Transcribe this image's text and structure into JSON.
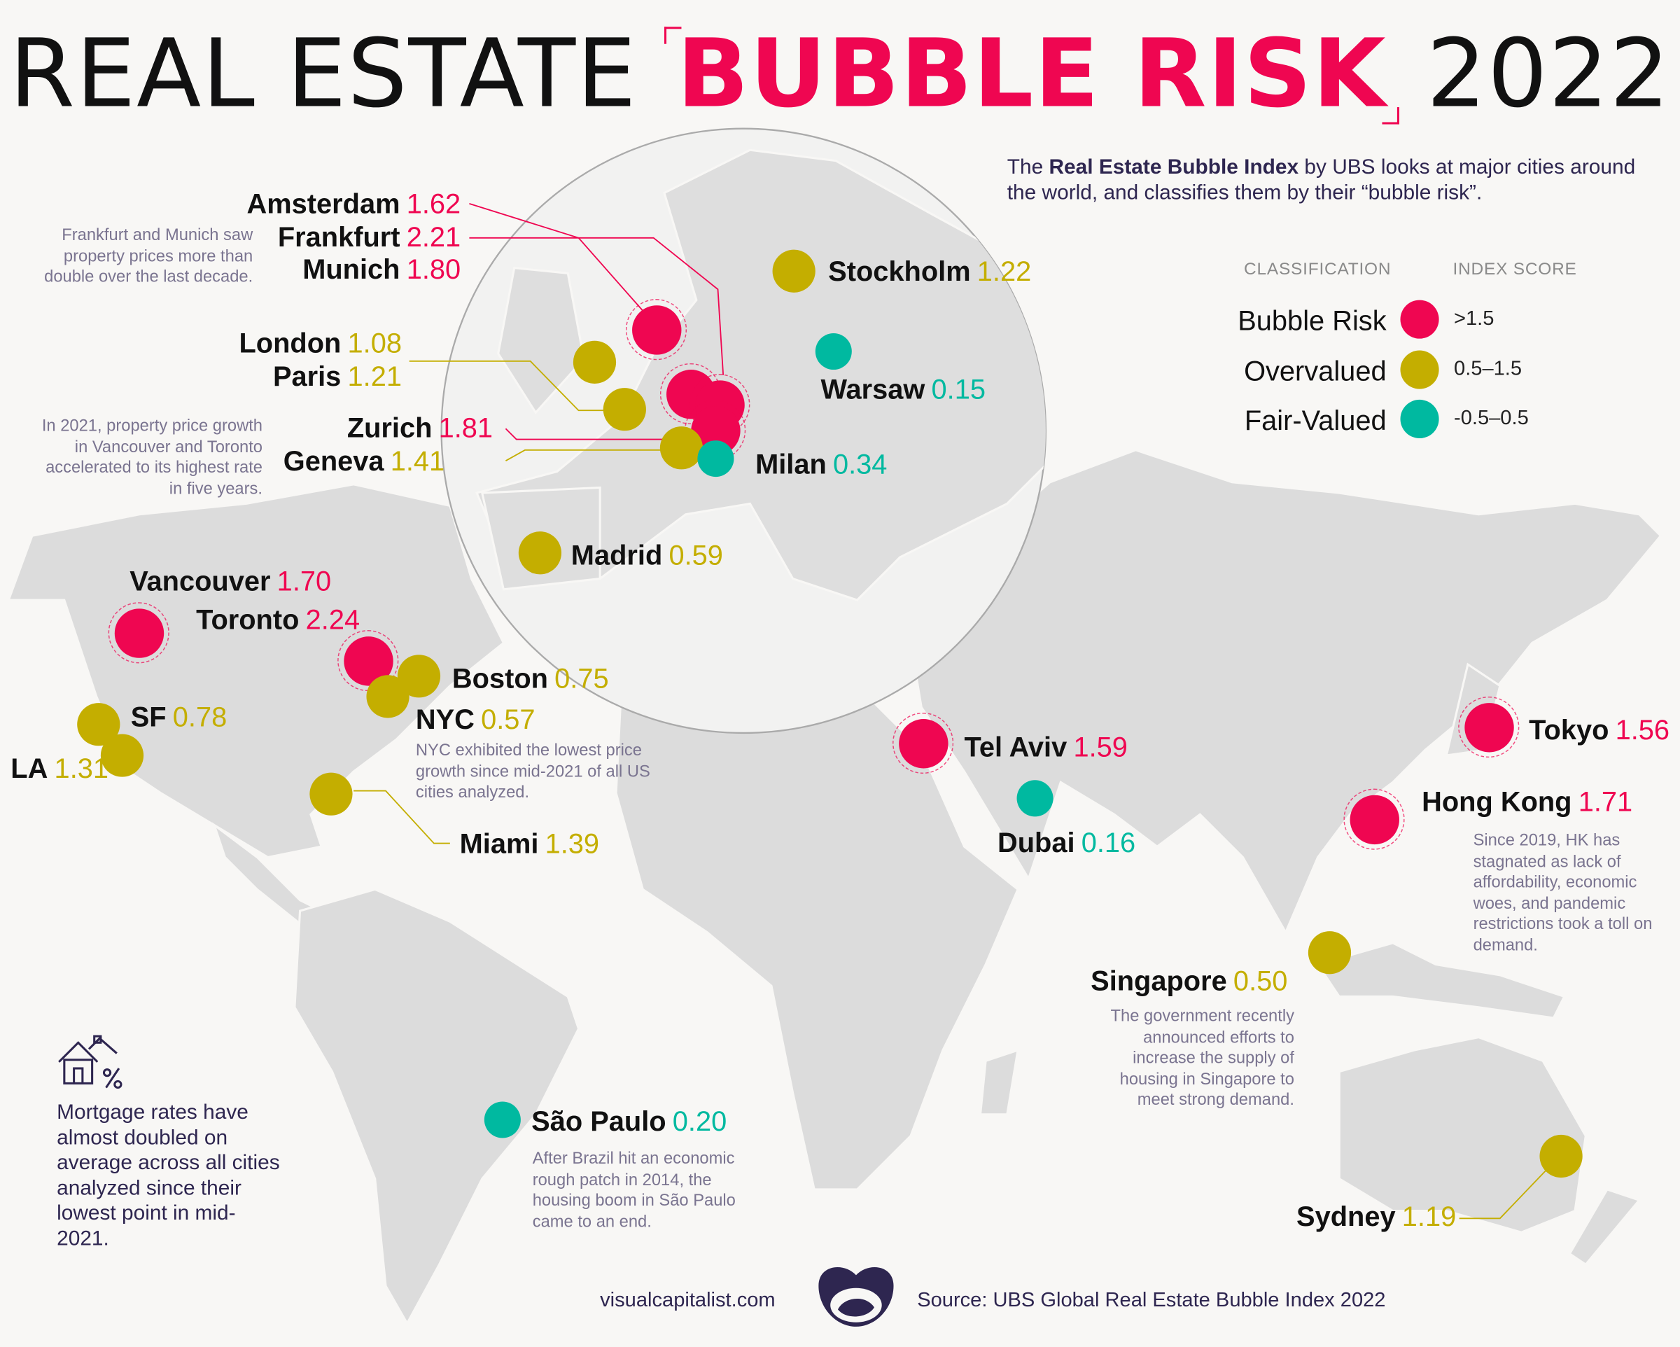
{
  "title": {
    "part1": "REAL ESTATE",
    "highlight": "BUBBLE RISK",
    "year": "2022"
  },
  "intro": {
    "pre": "The ",
    "bold": "Real Estate Bubble Index",
    "post": " by UBS looks at major cities around the world, and classifies them by their “bubble risk”."
  },
  "legend": {
    "col1": "CLASSIFICATION",
    "col2": "INDEX SCORE",
    "items": [
      {
        "label": "Bubble Risk",
        "range": ">1.5",
        "color": "#ef0651"
      },
      {
        "label": "Overvalued",
        "range": "0.5–1.5",
        "color": "#c4ae00"
      },
      {
        "label": "Fair-Valued",
        "range": "-0.5–0.5",
        "color": "#00b9a0"
      }
    ]
  },
  "cities": [
    {
      "name": "Amsterdam",
      "score": "1.62",
      "class": "Bubble Risk"
    },
    {
      "name": "Frankfurt",
      "score": "2.21",
      "class": "Bubble Risk"
    },
    {
      "name": "Munich",
      "score": "1.80",
      "class": "Bubble Risk"
    },
    {
      "name": "London",
      "score": "1.08",
      "class": "Overvalued"
    },
    {
      "name": "Paris",
      "score": "1.21",
      "class": "Overvalued"
    },
    {
      "name": "Zurich",
      "score": "1.81",
      "class": "Bubble Risk"
    },
    {
      "name": "Geneva",
      "score": "1.41",
      "class": "Overvalued"
    },
    {
      "name": "Milan",
      "score": "0.34",
      "class": "Fair-Valued"
    },
    {
      "name": "Stockholm",
      "score": "1.22",
      "class": "Overvalued"
    },
    {
      "name": "Warsaw",
      "score": "0.15",
      "class": "Fair-Valued"
    },
    {
      "name": "Madrid",
      "score": "0.59",
      "class": "Overvalued"
    },
    {
      "name": "Vancouver",
      "score": "1.70",
      "class": "Bubble Risk"
    },
    {
      "name": "Toronto",
      "score": "2.24",
      "class": "Bubble Risk"
    },
    {
      "name": "Boston",
      "score": "0.75",
      "class": "Overvalued"
    },
    {
      "name": "NYC",
      "score": "0.57",
      "class": "Overvalued"
    },
    {
      "name": "SF",
      "score": "0.78",
      "class": "Overvalued"
    },
    {
      "name": "LA",
      "score": "1.31",
      "class": "Overvalued"
    },
    {
      "name": "Miami",
      "score": "1.39",
      "class": "Overvalued"
    },
    {
      "name": "São Paulo",
      "score": "0.20",
      "class": "Fair-Valued"
    },
    {
      "name": "Tel Aviv",
      "score": "1.59",
      "class": "Bubble Risk"
    },
    {
      "name": "Dubai",
      "score": "0.16",
      "class": "Fair-Valued"
    },
    {
      "name": "Tokyo",
      "score": "1.56",
      "class": "Bubble Risk"
    },
    {
      "name": "Hong Kong",
      "score": "1.71",
      "class": "Bubble Risk"
    },
    {
      "name": "Singapore",
      "score": "0.50",
      "class": "Overvalued"
    },
    {
      "name": "Sydney",
      "score": "1.19",
      "class": "Overvalued"
    }
  ],
  "notes": {
    "frankfurt_munich": "Frankfurt and Munich saw property prices more than double over the last decade.",
    "canada": "In 2021, property price growth in Vancouver and Toronto accelerated to its highest rate in five years.",
    "nyc": "NYC exhibited the lowest price growth since mid-2021 of all US cities analyzed.",
    "hong_kong": "Since 2019, HK has stagnated as lack of affordability, economic woes, and pandemic restrictions took a toll on demand.",
    "singapore": "The government recently announced efforts to increase the supply of housing in Singapore to meet strong demand.",
    "sao_paulo": "After Brazil hit an economic rough patch in 2014, the housing boom in São Paulo came to an end.",
    "mortgage": "Mortgage rates have almost doubled on average across all cities analyzed since their lowest point in mid-2021."
  },
  "footer": {
    "site": "visualcapitalist.com",
    "source": "Source: UBS Global Real Estate Bubble Index 2022"
  },
  "icons": {
    "mortgage": "house-percent-icon",
    "logo": "visual-capitalist-logo"
  }
}
